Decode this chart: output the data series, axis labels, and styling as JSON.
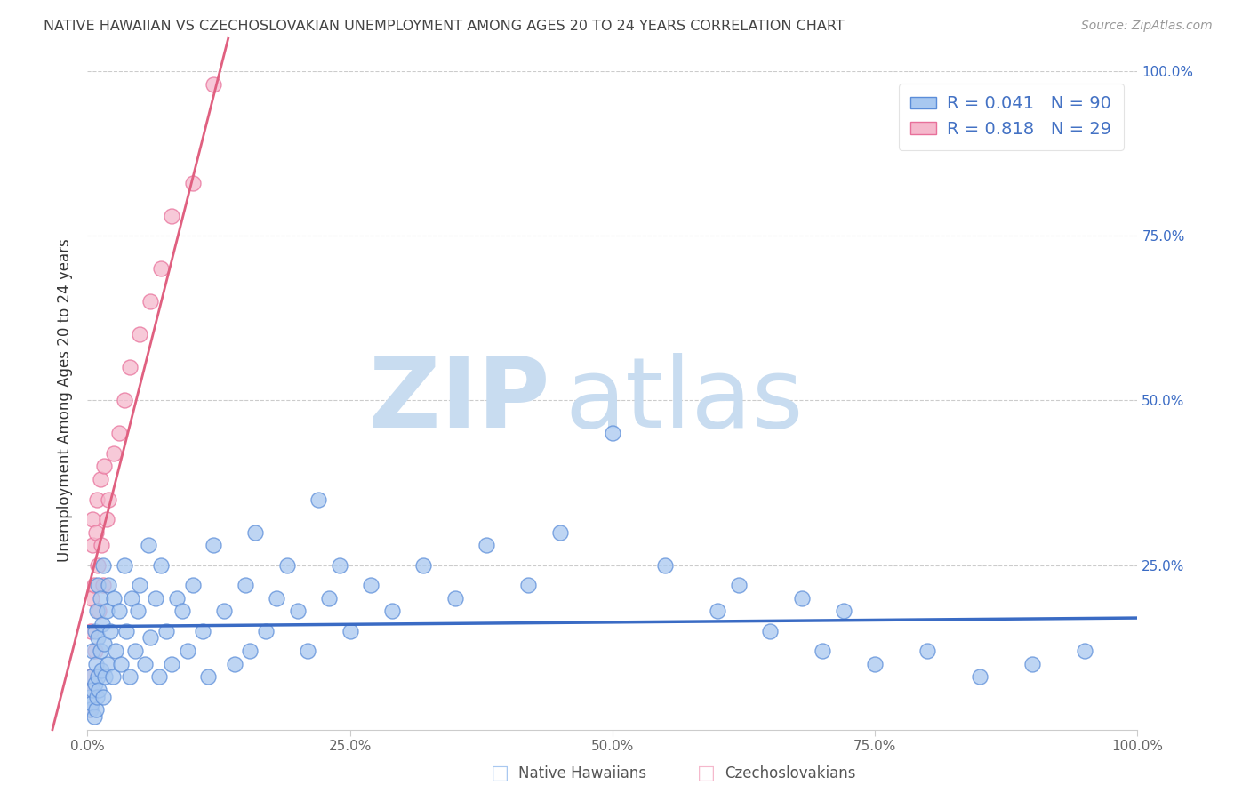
{
  "title": "NATIVE HAWAIIAN VS CZECHOSLOVAKIAN UNEMPLOYMENT AMONG AGES 20 TO 24 YEARS CORRELATION CHART",
  "source": "Source: ZipAtlas.com",
  "ylabel": "Unemployment Among Ages 20 to 24 years",
  "xlim": [
    0,
    1.0
  ],
  "ylim": [
    0,
    1.0
  ],
  "blue_fill": "#A8C8F0",
  "pink_fill": "#F5B8CC",
  "blue_edge": "#5B8DD9",
  "pink_edge": "#E8709A",
  "blue_line_color": "#3A6BC4",
  "pink_line_color": "#E06080",
  "legend_text_color": "#4472C4",
  "title_color": "#444444",
  "source_color": "#999999",
  "R_blue": 0.041,
  "N_blue": 90,
  "R_pink": 0.818,
  "N_pink": 29,
  "blue_scatter_x": [
    0.002,
    0.003,
    0.003,
    0.004,
    0.005,
    0.005,
    0.006,
    0.007,
    0.007,
    0.008,
    0.008,
    0.009,
    0.009,
    0.01,
    0.01,
    0.01,
    0.011,
    0.012,
    0.012,
    0.013,
    0.014,
    0.015,
    0.015,
    0.016,
    0.017,
    0.018,
    0.019,
    0.02,
    0.022,
    0.024,
    0.025,
    0.027,
    0.03,
    0.032,
    0.035,
    0.037,
    0.04,
    0.042,
    0.045,
    0.048,
    0.05,
    0.055,
    0.058,
    0.06,
    0.065,
    0.068,
    0.07,
    0.075,
    0.08,
    0.085,
    0.09,
    0.095,
    0.1,
    0.11,
    0.115,
    0.12,
    0.13,
    0.14,
    0.15,
    0.155,
    0.16,
    0.17,
    0.18,
    0.19,
    0.2,
    0.21,
    0.22,
    0.23,
    0.24,
    0.25,
    0.27,
    0.29,
    0.32,
    0.35,
    0.38,
    0.42,
    0.45,
    0.5,
    0.55,
    0.6,
    0.62,
    0.65,
    0.68,
    0.7,
    0.72,
    0.75,
    0.8,
    0.85,
    0.9,
    0.95
  ],
  "blue_scatter_y": [
    0.05,
    0.03,
    0.08,
    0.04,
    0.06,
    0.12,
    0.02,
    0.07,
    0.15,
    0.03,
    0.1,
    0.05,
    0.18,
    0.08,
    0.14,
    0.22,
    0.06,
    0.12,
    0.2,
    0.09,
    0.16,
    0.05,
    0.25,
    0.13,
    0.08,
    0.18,
    0.1,
    0.22,
    0.15,
    0.08,
    0.2,
    0.12,
    0.18,
    0.1,
    0.25,
    0.15,
    0.08,
    0.2,
    0.12,
    0.18,
    0.22,
    0.1,
    0.28,
    0.14,
    0.2,
    0.08,
    0.25,
    0.15,
    0.1,
    0.2,
    0.18,
    0.12,
    0.22,
    0.15,
    0.08,
    0.28,
    0.18,
    0.1,
    0.22,
    0.12,
    0.3,
    0.15,
    0.2,
    0.25,
    0.18,
    0.12,
    0.35,
    0.2,
    0.25,
    0.15,
    0.22,
    0.18,
    0.25,
    0.2,
    0.28,
    0.22,
    0.3,
    0.45,
    0.25,
    0.18,
    0.22,
    0.15,
    0.2,
    0.12,
    0.18,
    0.1,
    0.12,
    0.08,
    0.1,
    0.12
  ],
  "pink_scatter_x": [
    0.001,
    0.002,
    0.003,
    0.003,
    0.004,
    0.005,
    0.005,
    0.006,
    0.007,
    0.008,
    0.009,
    0.01,
    0.011,
    0.012,
    0.013,
    0.015,
    0.016,
    0.018,
    0.02,
    0.025,
    0.03,
    0.035,
    0.04,
    0.05,
    0.06,
    0.07,
    0.08,
    0.1,
    0.12
  ],
  "pink_scatter_y": [
    0.03,
    0.06,
    0.08,
    0.15,
    0.2,
    0.28,
    0.32,
    0.22,
    0.12,
    0.3,
    0.35,
    0.25,
    0.18,
    0.38,
    0.28,
    0.22,
    0.4,
    0.32,
    0.35,
    0.42,
    0.45,
    0.5,
    0.55,
    0.6,
    0.65,
    0.7,
    0.78,
    0.83,
    0.98
  ],
  "background_color": "#ffffff",
  "grid_color": "#cccccc",
  "watermark_zip": "ZIP",
  "watermark_atlas": "atlas",
  "watermark_color": "#C8DCF0"
}
